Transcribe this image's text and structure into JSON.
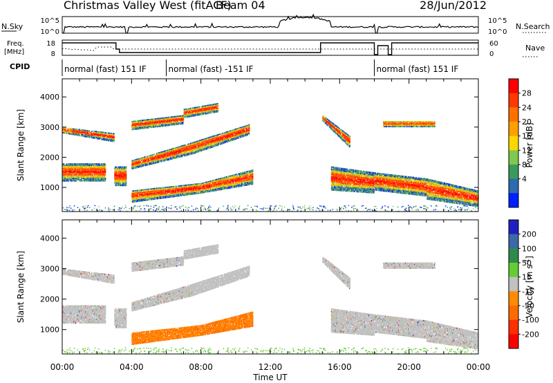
{
  "header": {
    "station": "Christmas Valley West (fitACF)",
    "beam": "Beam 04",
    "date": "28/Jun/2012"
  },
  "strip": {
    "nsky_label": "N.Sky",
    "nsearch_label": "N.Search",
    "noise_ticks": [
      "10^5",
      "10^0"
    ],
    "freq_label_1": "Freq.",
    "freq_label_2": "[MHz]",
    "freq_ticks": [
      "18",
      "8"
    ],
    "nave_label": "Nave",
    "nave_ticks": [
      "60",
      "0"
    ],
    "cpid_label": "CPID",
    "cpid_segments": [
      {
        "label": "normal (fast) 151 IF",
        "start_hour": 0,
        "end_hour": 6
      },
      {
        "label": "normal (fast) -151 IF",
        "start_hour": 6,
        "end_hour": 18
      },
      {
        "label": "normal (fast) 151 IF",
        "start_hour": 18,
        "end_hour": 24
      }
    ]
  },
  "x_axis": {
    "title": "Time UT",
    "ticks": [
      "00:00",
      "04:00",
      "08:00",
      "12:00",
      "16:00",
      "20:00",
      "00:00"
    ]
  },
  "y_axis": {
    "title": "Slant Range [km]",
    "ticks": [
      "1000",
      "2000",
      "3000",
      "4000"
    ]
  },
  "colorbars": {
    "power": {
      "label": "Power [dB]",
      "ticks": [
        "28",
        "24",
        "20",
        "16",
        "12",
        "8",
        "4"
      ],
      "colors": [
        "#ff0000",
        "#ff3a00",
        "#ff7000",
        "#ffa000",
        "#ffd700",
        "#7ec850",
        "#3a9a5a",
        "#2e6ab0",
        "#0020ff"
      ]
    },
    "velocity": {
      "label_main": "Velocity [m s",
      "label_sup": "-1",
      "label_end": "]",
      "ticks": [
        "200",
        "100",
        "50",
        "15",
        "-15",
        "-50",
        "-100",
        "-200"
      ],
      "colors": [
        "#2020c0",
        "#3a6aa8",
        "#2e8b4a",
        "#66cc33",
        "#c0c0c0",
        "#ff8c00",
        "#ff6a00",
        "#ff3000",
        "#ff0000"
      ]
    }
  },
  "chart_data": {
    "type": "heatmap",
    "x_range_hours": [
      0,
      24
    ],
    "y_range_km": [
      200,
      4600
    ],
    "scatter_bands": [
      {
        "t0": 0.0,
        "t1": 3.0,
        "r0": 2800,
        "r1": 3000,
        "r2": 2500,
        "r3": 2800
      },
      {
        "t0": 0.0,
        "t1": 2.5,
        "r0": 1200,
        "r1": 1800,
        "r2": 1200,
        "r3": 1800
      },
      {
        "t0": 3.0,
        "t1": 3.7,
        "r0": 1050,
        "r1": 1700,
        "r2": 1050,
        "r3": 1700
      },
      {
        "t0": 4.0,
        "t1": 7.5,
        "r0": 1600,
        "r1": 1900,
        "r2": 2100,
        "r3": 2500
      },
      {
        "t0": 7.5,
        "t1": 10.8,
        "r0": 2100,
        "r1": 2500,
        "r2": 2750,
        "r3": 3100
      },
      {
        "t0": 4.0,
        "t1": 8.0,
        "r0": 500,
        "r1": 900,
        "r2": 800,
        "r3": 1150
      },
      {
        "t0": 8.0,
        "t1": 11.0,
        "r0": 800,
        "r1": 1150,
        "r2": 1100,
        "r3": 1600
      },
      {
        "t0": 4.0,
        "t1": 7.0,
        "r0": 2900,
        "r1": 3200,
        "r2": 3100,
        "r3": 3400
      },
      {
        "t0": 7.0,
        "t1": 9.0,
        "r0": 3300,
        "r1": 3600,
        "r2": 3500,
        "r3": 3800
      },
      {
        "t0": 15.5,
        "t1": 18.0,
        "r0": 900,
        "r1": 1700,
        "r2": 800,
        "r3": 1500
      },
      {
        "t0": 18.0,
        "t1": 21.0,
        "r0": 900,
        "r1": 1500,
        "r2": 700,
        "r3": 1300
      },
      {
        "t0": 21.0,
        "t1": 24.0,
        "r0": 600,
        "r1": 1300,
        "r2": 350,
        "r3": 900
      },
      {
        "t0": 15.0,
        "t1": 16.6,
        "r0": 3200,
        "r1": 3400,
        "r2": 2300,
        "r3": 2700
      },
      {
        "t0": 18.5,
        "t1": 21.5,
        "r0": 3000,
        "r1": 3200,
        "r2": 3000,
        "r3": 3200
      }
    ]
  }
}
